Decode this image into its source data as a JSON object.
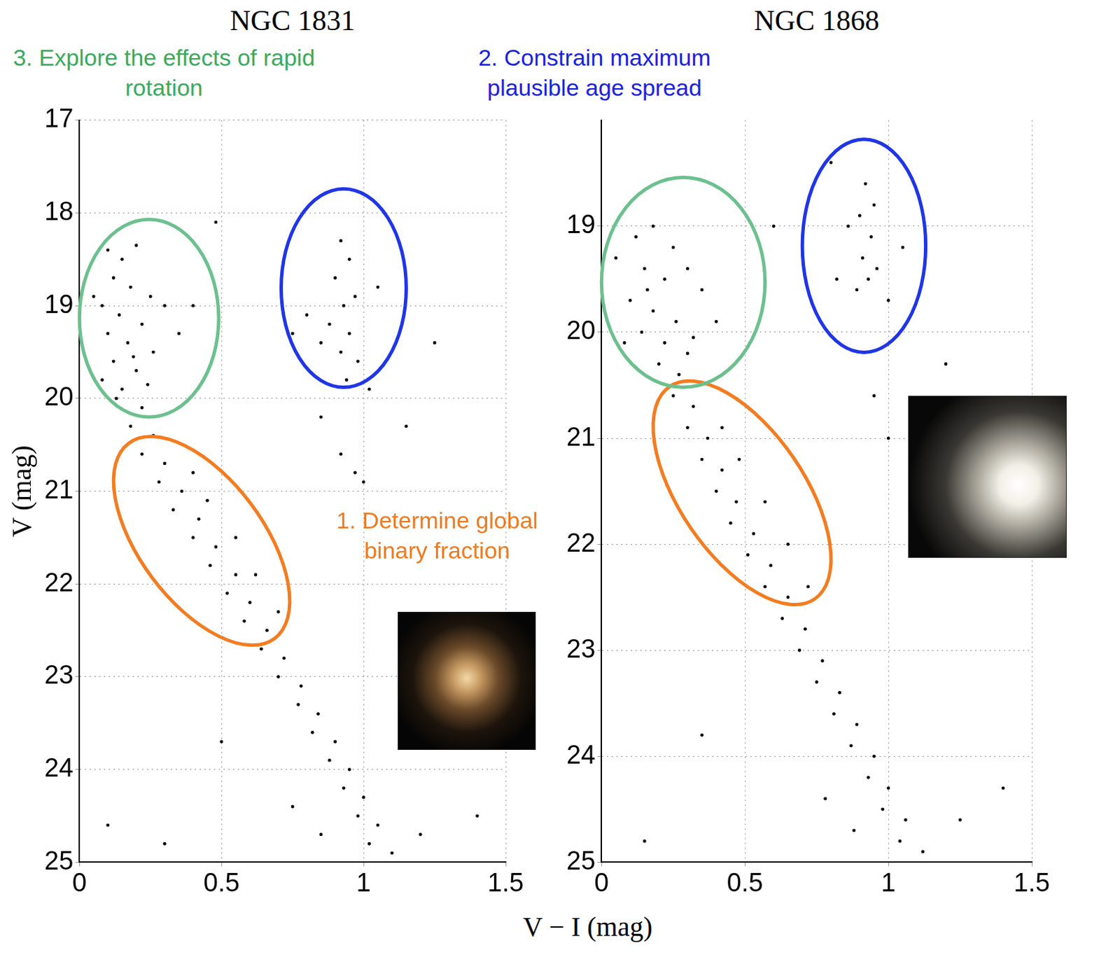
{
  "chart_data": [
    {
      "type": "scatter",
      "title": "NGC 1831",
      "ylabel": "V (mag)",
      "x": [
        0.1,
        0.15,
        0.2,
        0.12,
        0.18,
        0.25,
        0.08,
        0.14,
        0.22,
        0.3,
        0.1,
        0.17,
        0.26,
        0.12,
        0.2,
        0.08,
        0.15,
        0.24,
        0.35,
        0.05,
        0.19,
        0.13,
        0.22,
        0.4,
        0.18,
        0.26,
        0.22,
        0.3,
        0.28,
        0.36,
        0.33,
        0.42,
        0.4,
        0.48,
        0.46,
        0.55,
        0.52,
        0.6,
        0.58,
        0.66,
        0.64,
        0.72,
        0.7,
        0.78,
        0.77,
        0.84,
        0.82,
        0.9,
        0.88,
        0.95,
        0.93,
        1.0,
        0.98,
        1.05,
        1.02,
        1.1,
        0.85,
        1.2,
        0.75,
        0.45,
        0.55,
        0.62,
        0.7,
        0.4,
        0.92,
        0.95,
        0.9,
        0.97,
        0.93,
        0.88,
        0.95,
        0.92,
        0.98,
        0.85,
        1.05,
        0.8,
        0.94,
        1.02,
        0.92,
        0.97,
        1.0,
        0.85,
        0.75,
        0.48,
        1.25,
        0.5,
        0.3,
        1.4,
        0.1,
        1.15
      ],
      "values": [
        18.4,
        18.5,
        18.35,
        18.7,
        18.8,
        18.9,
        19.0,
        19.1,
        19.2,
        19.0,
        19.3,
        19.4,
        19.5,
        19.6,
        19.7,
        19.8,
        19.9,
        19.85,
        19.3,
        18.9,
        19.55,
        20.0,
        20.1,
        19.0,
        20.3,
        20.4,
        20.6,
        20.7,
        20.9,
        21.0,
        21.2,
        21.3,
        21.5,
        21.6,
        21.8,
        21.9,
        22.1,
        22.2,
        22.4,
        22.5,
        22.7,
        22.8,
        23.0,
        23.1,
        23.3,
        23.4,
        23.6,
        23.7,
        23.9,
        24.0,
        24.2,
        24.3,
        24.5,
        24.6,
        24.8,
        24.9,
        24.7,
        24.7,
        24.4,
        21.1,
        21.5,
        21.9,
        22.3,
        20.8,
        18.3,
        18.5,
        18.7,
        18.9,
        19.0,
        19.2,
        19.3,
        19.5,
        19.6,
        19.4,
        18.8,
        19.1,
        19.8,
        19.9,
        20.6,
        20.8,
        20.9,
        20.2,
        19.3,
        18.1,
        19.4,
        23.7,
        24.8,
        24.5,
        24.6,
        20.3
      ],
      "color": "#000000",
      "marker": "circle",
      "xlim": [
        0,
        1.5
      ],
      "xticks": [
        0,
        0.5,
        1,
        1.5
      ],
      "ylim": [
        25,
        17
      ],
      "yticks": [
        17,
        18,
        19,
        20,
        21,
        22,
        23,
        24,
        25
      ],
      "grid": true,
      "regions": [
        {
          "color": "#f47c20",
          "x": [
            0.12,
            0.74
          ],
          "y": [
            20.41,
            22.66
          ]
        },
        {
          "color": "#1f35e8",
          "x": [
            0.71,
            1.15
          ],
          "y": [
            17.74,
            19.88
          ]
        },
        {
          "color": "#6cc08e",
          "x": [
            0.0,
            0.49
          ],
          "y": [
            18.07,
            20.2
          ]
        }
      ]
    },
    {
      "type": "scatter",
      "title": "NGC 1868",
      "x": [
        0.12,
        0.18,
        0.25,
        0.15,
        0.22,
        0.3,
        0.1,
        0.18,
        0.26,
        0.35,
        0.14,
        0.22,
        0.3,
        0.2,
        0.27,
        0.05,
        0.4,
        0.16,
        0.32,
        0.08,
        0.25,
        0.32,
        0.3,
        0.37,
        0.35,
        0.42,
        0.4,
        0.47,
        0.45,
        0.53,
        0.51,
        0.59,
        0.57,
        0.65,
        0.63,
        0.71,
        0.69,
        0.77,
        0.75,
        0.83,
        0.81,
        0.89,
        0.87,
        0.95,
        0.93,
        1.0,
        0.98,
        1.06,
        1.04,
        1.12,
        0.88,
        1.25,
        0.78,
        0.48,
        0.57,
        0.65,
        0.72,
        0.42,
        0.92,
        0.9,
        0.94,
        0.91,
        0.93,
        0.89,
        0.96,
        0.86,
        1.0,
        0.95,
        0.82,
        1.05,
        0.95,
        1.0,
        1.2,
        0.6,
        0.35,
        1.4,
        0.15,
        0.8
      ],
      "values": [
        19.1,
        19.0,
        19.2,
        19.4,
        19.5,
        19.4,
        19.7,
        19.8,
        19.9,
        19.6,
        20.0,
        20.1,
        20.2,
        20.3,
        20.4,
        19.3,
        19.9,
        19.6,
        20.05,
        20.1,
        20.6,
        20.7,
        20.9,
        21.0,
        21.2,
        21.3,
        21.5,
        21.6,
        21.8,
        21.9,
        22.1,
        22.2,
        22.4,
        22.5,
        22.7,
        22.8,
        23.0,
        23.1,
        23.3,
        23.4,
        23.6,
        23.7,
        23.9,
        24.0,
        24.2,
        24.3,
        24.5,
        24.6,
        24.8,
        24.9,
        24.7,
        24.6,
        24.4,
        21.2,
        21.6,
        22.0,
        22.4,
        20.9,
        18.6,
        18.9,
        19.1,
        19.3,
        19.5,
        19.6,
        19.4,
        19.0,
        19.7,
        18.8,
        19.5,
        19.2,
        20.6,
        21.0,
        20.3,
        19.0,
        23.8,
        24.3,
        24.8,
        18.4
      ],
      "color": "#000000",
      "marker": "circle",
      "xlim": [
        0,
        1.5
      ],
      "xticks": [
        0,
        0.5,
        1,
        1.5
      ],
      "ylim": [
        25,
        18
      ],
      "yticks": [
        19,
        20,
        21,
        22,
        23,
        24,
        25
      ],
      "grid": true,
      "regions": [
        {
          "color": "#f47c20",
          "x": [
            0.18,
            0.8
          ],
          "y": [
            20.46,
            22.57
          ]
        },
        {
          "color": "#1f35e8",
          "x": [
            0.7,
            1.13
          ],
          "y": [
            18.18,
            20.19
          ]
        },
        {
          "color": "#6cc08e",
          "x": [
            0.0,
            0.57
          ],
          "y": [
            18.54,
            20.52
          ]
        }
      ]
    }
  ],
  "xlabel": "V − I (mag)",
  "annotations": [
    {
      "text": "1. Determine global binary fraction",
      "color": "#f07a1e"
    },
    {
      "text": "2. Constrain maximum plausible age spread",
      "color": "#1a22df"
    },
    {
      "text": "3. Explore the effects of rapid rotation",
      "color": "#3aaa5c"
    }
  ]
}
